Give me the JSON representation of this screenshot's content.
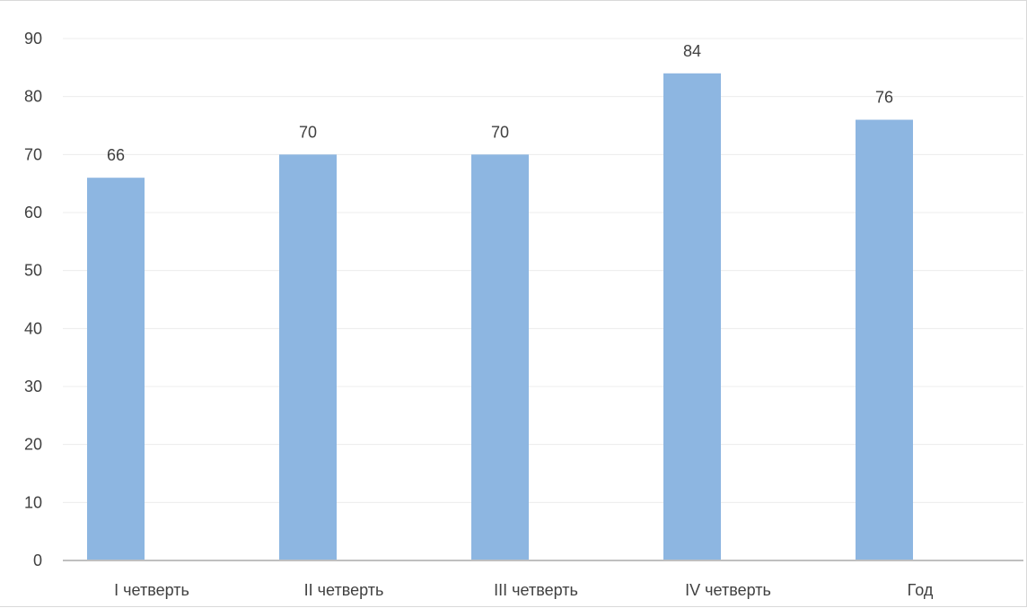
{
  "chart_data": {
    "type": "bar",
    "categories": [
      "I четверть",
      "II четверть",
      "III четверть",
      "IV четверть",
      "Год"
    ],
    "series": [
      {
        "values": [
          66,
          70,
          70,
          84,
          76
        ]
      }
    ],
    "data_labels": [
      "66",
      "70",
      "70",
      "84",
      "76"
    ],
    "ylim": [
      0,
      90
    ],
    "yticks": [
      0,
      10,
      20,
      30,
      40,
      50,
      60,
      70,
      80,
      90
    ],
    "ytick_labels": [
      "0",
      "10",
      "20",
      "30",
      "40",
      "50",
      "60",
      "70",
      "80",
      "90"
    ],
    "title": "",
    "xlabel": "",
    "ylabel": "",
    "grid": true,
    "legend": false,
    "colors": {
      "bar": "#8db6e1",
      "grid": "#ececec",
      "axis": "#bfbfbf",
      "text": "#404040"
    }
  }
}
